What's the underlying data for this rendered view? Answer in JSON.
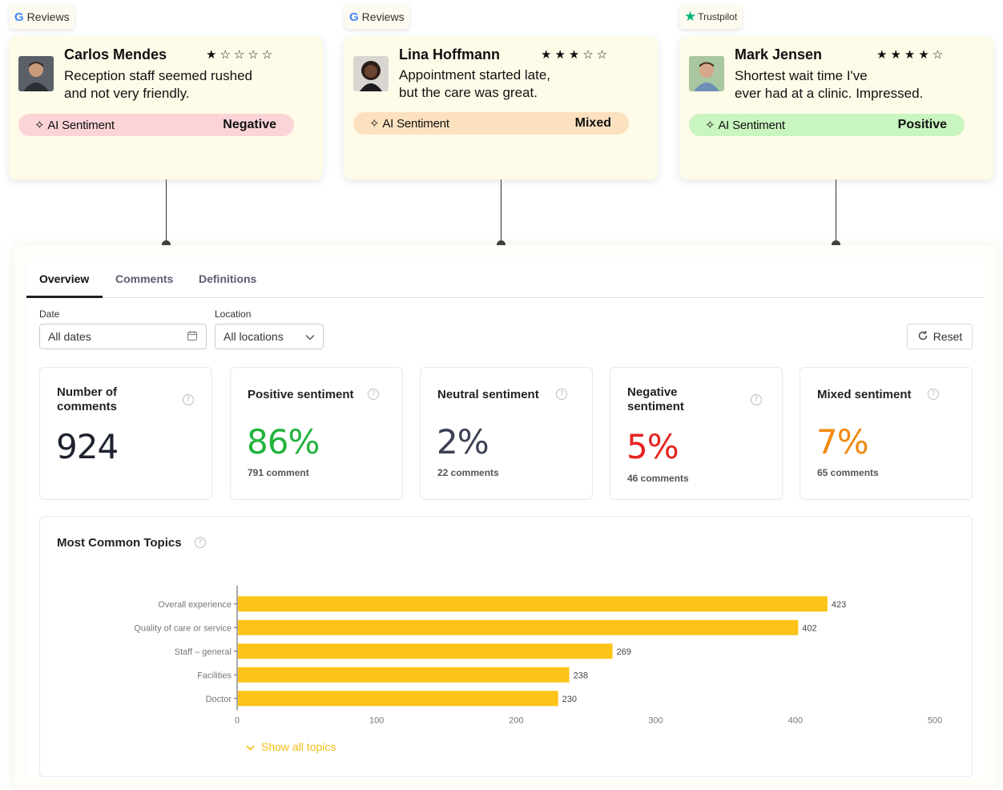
{
  "reviews": [
    {
      "source": "Reviews",
      "source_type": "google",
      "name": "Carlos Mendes",
      "rating": 1,
      "text_lines": [
        "Reception staff seemed rushed",
        "and not very friendly."
      ],
      "pill_label": "AI Sentiment",
      "sentiment": "Negative"
    },
    {
      "source": "Reviews",
      "source_type": "google",
      "name": "Lina Hoffmann",
      "rating": 3,
      "text_lines": [
        "Appointment started late,",
        "but the care was great."
      ],
      "pill_label": "AI Sentiment",
      "sentiment": "Mixed"
    },
    {
      "source": "Trustpilot",
      "source_type": "trustpilot",
      "name": "Mark Jensen",
      "rating": 4,
      "text_lines": [
        "Shortest wait time I've",
        "ever had at a clinic. Impressed."
      ],
      "pill_label": "AI Sentiment",
      "sentiment": "Positive"
    }
  ],
  "tabs": [
    {
      "label": "Overview",
      "active": true
    },
    {
      "label": "Comments",
      "active": false
    },
    {
      "label": "Definitions",
      "active": false
    }
  ],
  "filters": {
    "date_label": "Date",
    "date_value": "All dates",
    "location_label": "Location",
    "location_value": "All locations",
    "reset_label": "Reset"
  },
  "stats": [
    {
      "title": "Number of comments",
      "value": "924",
      "sub": "",
      "color": "#1f2330"
    },
    {
      "title": "Positive sentiment",
      "value": "86%",
      "sub": "791 comment",
      "color": "#21b33c"
    },
    {
      "title": "Neutral sentiment",
      "value": "2%",
      "sub": "22 comments",
      "color": "#3d4154"
    },
    {
      "title": "Negative sentiment",
      "value": "5%",
      "sub": "46 comments",
      "color": "#e52420"
    },
    {
      "title": "Mixed sentiment",
      "value": "7%",
      "sub": "65 comments",
      "color": "#f08a12"
    }
  ],
  "topics": {
    "title": "Most Common Topics",
    "show_all_label": "Show all topics"
  },
  "chart_data": {
    "type": "bar",
    "orientation": "horizontal",
    "categories": [
      "Overall experience",
      "Quality of care or service",
      "Staff – general",
      "Facilities",
      "Doctor"
    ],
    "values": [
      423,
      402,
      269,
      238,
      230
    ],
    "xlim": [
      0,
      500
    ],
    "xticks": [
      0,
      100,
      200,
      300,
      400,
      500
    ],
    "bar_color": "#fcc419",
    "title": "",
    "xlabel": "",
    "ylabel": ""
  },
  "colors": {
    "negative_pill": "#fbd4d8",
    "mixed_pill": "#fce1bf",
    "positive_pill": "#c9f5c0",
    "accent_yellow": "#f2bd16"
  }
}
